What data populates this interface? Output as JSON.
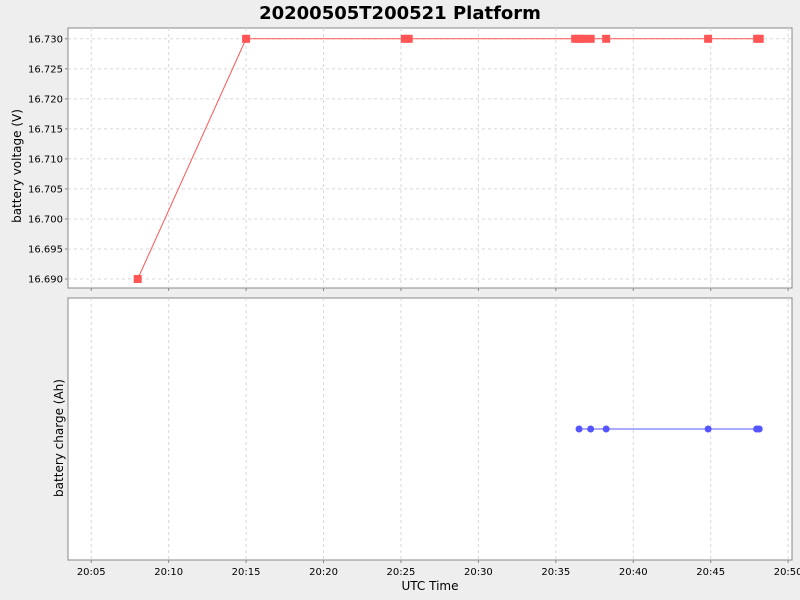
{
  "chart_data": {
    "type": "line",
    "title": "20200505T200521 Platform",
    "xlabel": "UTC Time",
    "x_ticks": [
      "20:05",
      "20:10",
      "20:15",
      "20:20",
      "20:25",
      "20:30",
      "20:35",
      "20:40",
      "20:45",
      "20:50"
    ],
    "grid": true,
    "panels": [
      {
        "ylabel": "battery voltage (V)",
        "y_ticks": [
          "16.690",
          "16.695",
          "16.700",
          "16.705",
          "16.710",
          "16.715",
          "16.720",
          "16.725",
          "16.730"
        ],
        "ylim": [
          16.6885,
          16.7318
        ],
        "series": [
          {
            "color": "#ff5555",
            "marker": "square",
            "points": [
              {
                "x": "20:08:00",
                "y": 16.69
              },
              {
                "x": "20:15:00",
                "y": 16.73
              },
              {
                "x": "20:25:15",
                "y": 16.73
              },
              {
                "x": "20:25:30",
                "y": 16.73
              },
              {
                "x": "20:36:15",
                "y": 16.73
              },
              {
                "x": "20:36:30",
                "y": 16.73
              },
              {
                "x": "20:36:45",
                "y": 16.73
              },
              {
                "x": "20:37:15",
                "y": 16.73
              },
              {
                "x": "20:38:15",
                "y": 16.73
              },
              {
                "x": "20:44:50",
                "y": 16.73
              },
              {
                "x": "20:48:00",
                "y": 16.73
              },
              {
                "x": "20:48:10",
                "y": 16.73
              }
            ]
          }
        ]
      },
      {
        "ylabel": "battery charge (Ah)",
        "y_ticks": [],
        "series": [
          {
            "color": "#5555ff",
            "marker": "circle",
            "points": [
              {
                "x": "20:36:30"
              },
              {
                "x": "20:37:15"
              },
              {
                "x": "20:38:15"
              },
              {
                "x": "20:44:50"
              },
              {
                "x": "20:47:58"
              },
              {
                "x": "20:48:08"
              }
            ]
          }
        ]
      }
    ]
  }
}
